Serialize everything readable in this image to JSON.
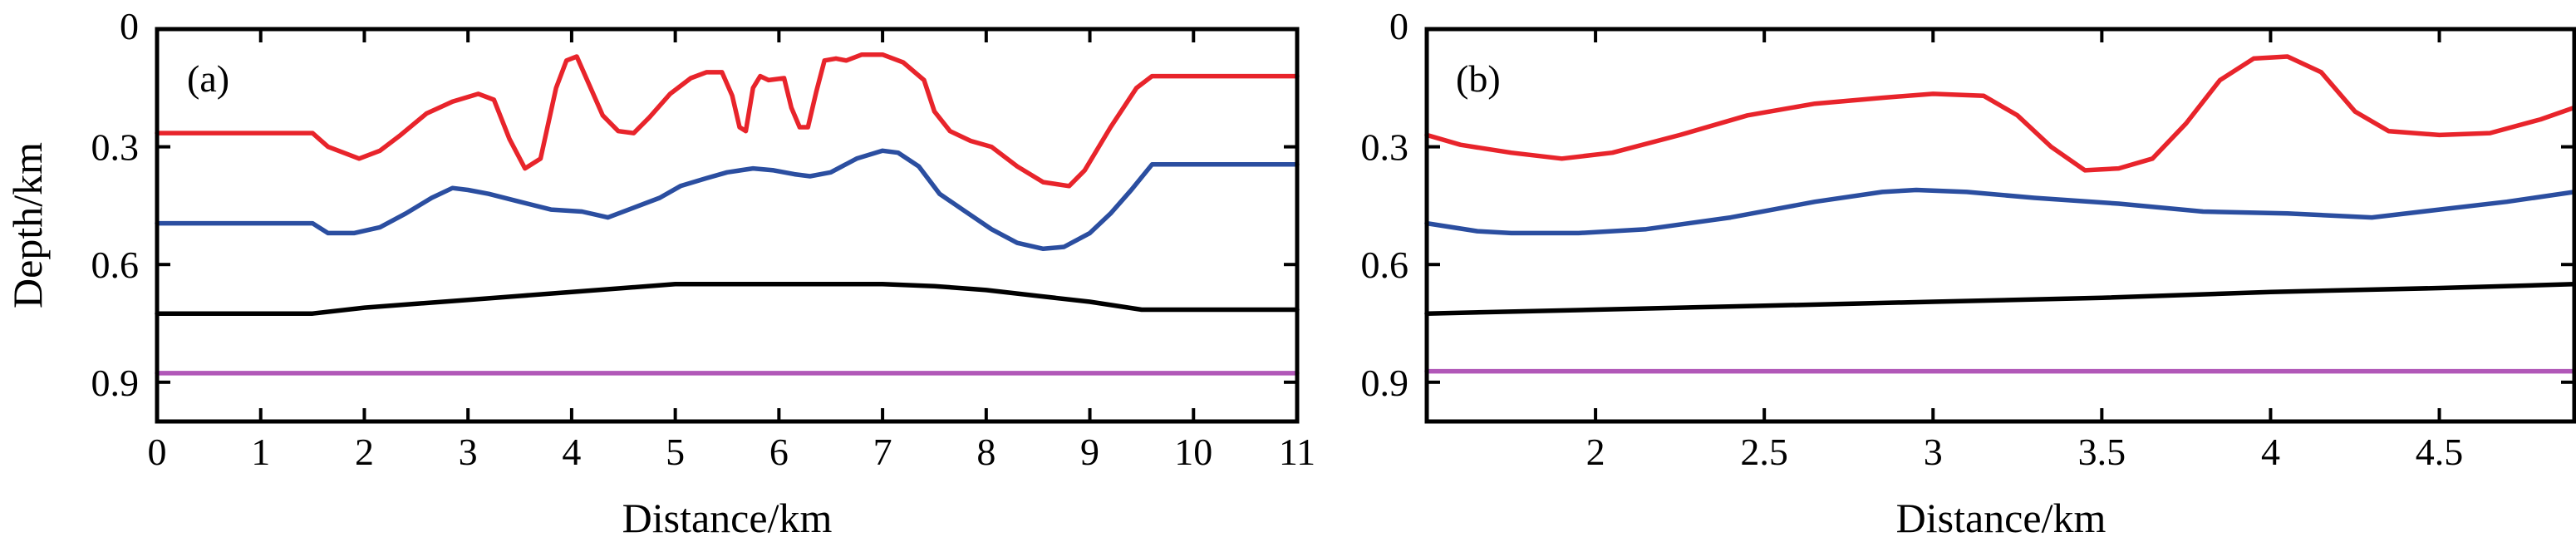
{
  "figure": {
    "background": "#ffffff"
  },
  "chart_data": [
    {
      "type": "line",
      "panel_label": "(a)",
      "xlabel": "Distance/km",
      "ylabel": "Depth/km",
      "xlim": [
        0,
        11
      ],
      "ylim": [
        0,
        1.0
      ],
      "y_inverted": true,
      "grid": false,
      "x_ticks": [
        0,
        1,
        2,
        3,
        4,
        5,
        6,
        7,
        8,
        9,
        10,
        11
      ],
      "x_tick_labels": [
        "0",
        "1",
        "2",
        "3",
        "4",
        "5",
        "6",
        "7",
        "8",
        "9",
        "10",
        "11"
      ],
      "y_ticks": [
        0,
        0.3,
        0.6,
        0.9
      ],
      "y_tick_labels": [
        "0",
        "0.3",
        "0.6",
        "0.9"
      ],
      "series": [
        {
          "color": "#e8242b",
          "x": [
            0,
            1.5,
            1.65,
            1.8,
            1.95,
            2.15,
            2.35,
            2.6,
            2.85,
            3.1,
            3.25,
            3.4,
            3.55,
            3.7,
            3.85,
            3.95,
            4.05,
            4.15,
            4.3,
            4.45,
            4.6,
            4.75,
            4.95,
            5.15,
            5.3,
            5.45,
            5.55,
            5.62,
            5.68,
            5.75,
            5.82,
            5.9,
            6.05,
            6.12,
            6.2,
            6.28,
            6.36,
            6.44,
            6.55,
            6.65,
            6.8,
            7.0,
            7.2,
            7.4,
            7.5,
            7.65,
            7.85,
            8.05,
            8.3,
            8.55,
            8.8,
            8.95,
            9.2,
            9.45,
            9.6,
            11
          ],
          "y": [
            0.265,
            0.265,
            0.3,
            0.315,
            0.33,
            0.31,
            0.27,
            0.215,
            0.185,
            0.165,
            0.18,
            0.28,
            0.355,
            0.33,
            0.15,
            0.08,
            0.07,
            0.13,
            0.22,
            0.26,
            0.265,
            0.225,
            0.165,
            0.125,
            0.11,
            0.11,
            0.17,
            0.25,
            0.26,
            0.15,
            0.12,
            0.13,
            0.125,
            0.2,
            0.25,
            0.25,
            0.16,
            0.08,
            0.075,
            0.08,
            0.065,
            0.065,
            0.085,
            0.13,
            0.21,
            0.26,
            0.285,
            0.3,
            0.35,
            0.39,
            0.4,
            0.36,
            0.25,
            0.15,
            0.12,
            0.12
          ]
        },
        {
          "color": "#2b4ea0",
          "x": [
            0,
            1.5,
            1.65,
            1.9,
            2.15,
            2.4,
            2.65,
            2.85,
            3.0,
            3.2,
            3.5,
            3.8,
            4.1,
            4.35,
            4.6,
            4.85,
            5.05,
            5.3,
            5.5,
            5.75,
            5.95,
            6.15,
            6.3,
            6.5,
            6.75,
            7.0,
            7.15,
            7.35,
            7.55,
            7.8,
            8.05,
            8.3,
            8.55,
            8.75,
            9.0,
            9.2,
            9.4,
            9.6,
            11
          ],
          "y": [
            0.495,
            0.495,
            0.52,
            0.52,
            0.505,
            0.47,
            0.43,
            0.405,
            0.41,
            0.42,
            0.44,
            0.46,
            0.465,
            0.48,
            0.455,
            0.43,
            0.4,
            0.38,
            0.365,
            0.355,
            0.36,
            0.37,
            0.375,
            0.365,
            0.33,
            0.31,
            0.315,
            0.35,
            0.42,
            0.465,
            0.51,
            0.545,
            0.56,
            0.555,
            0.52,
            0.47,
            0.41,
            0.345,
            0.345
          ]
        },
        {
          "color": "#000000",
          "x": [
            0,
            1.5,
            2.0,
            2.5,
            3.0,
            3.5,
            4.0,
            4.5,
            5.0,
            5.5,
            6.0,
            6.5,
            7.0,
            7.5,
            8.0,
            8.5,
            9.0,
            9.5,
            11
          ],
          "y": [
            0.725,
            0.725,
            0.71,
            0.7,
            0.69,
            0.68,
            0.67,
            0.66,
            0.65,
            0.65,
            0.65,
            0.65,
            0.65,
            0.655,
            0.665,
            0.68,
            0.695,
            0.715,
            0.715
          ]
        },
        {
          "color": "#b158b8",
          "x": [
            0,
            11
          ],
          "y": [
            0.877,
            0.877
          ]
        }
      ]
    },
    {
      "type": "line",
      "panel_label": "(b)",
      "xlabel": "Distance/km",
      "ylabel": "",
      "xlim": [
        1.5,
        4.9
      ],
      "ylim": [
        0,
        1.0
      ],
      "y_inverted": true,
      "grid": false,
      "x_ticks": [
        2,
        2.5,
        3,
        3.5,
        4,
        4.5
      ],
      "x_tick_labels": [
        "2",
        "2.5",
        "3",
        "3.5",
        "4",
        "4.5"
      ],
      "y_ticks": [
        0,
        0.3,
        0.6,
        0.9
      ],
      "y_tick_labels": [
        "0",
        "0.3",
        "0.6",
        "0.9"
      ],
      "series": [
        {
          "color": "#e8242b",
          "x": [
            1.5,
            1.6,
            1.75,
            1.9,
            2.05,
            2.25,
            2.45,
            2.65,
            2.85,
            3.0,
            3.15,
            3.25,
            3.35,
            3.45,
            3.55,
            3.65,
            3.75,
            3.85,
            3.95,
            4.05,
            4.15,
            4.25,
            4.35,
            4.5,
            4.65,
            4.8,
            4.9
          ],
          "y": [
            0.27,
            0.295,
            0.315,
            0.33,
            0.315,
            0.27,
            0.22,
            0.19,
            0.175,
            0.165,
            0.17,
            0.22,
            0.3,
            0.36,
            0.355,
            0.33,
            0.24,
            0.13,
            0.075,
            0.07,
            0.11,
            0.21,
            0.26,
            0.27,
            0.265,
            0.23,
            0.2
          ]
        },
        {
          "color": "#2b4ea0",
          "x": [
            1.5,
            1.65,
            1.75,
            1.95,
            2.15,
            2.4,
            2.65,
            2.85,
            2.95,
            3.1,
            3.3,
            3.55,
            3.8,
            4.05,
            4.3,
            4.5,
            4.7,
            4.9
          ],
          "y": [
            0.495,
            0.515,
            0.52,
            0.52,
            0.51,
            0.48,
            0.44,
            0.415,
            0.41,
            0.415,
            0.43,
            0.445,
            0.465,
            0.47,
            0.48,
            0.46,
            0.44,
            0.415
          ]
        },
        {
          "color": "#000000",
          "x": [
            1.5,
            2.0,
            2.5,
            3.0,
            3.5,
            4.0,
            4.5,
            4.9
          ],
          "y": [
            0.725,
            0.715,
            0.705,
            0.695,
            0.685,
            0.67,
            0.66,
            0.65
          ]
        },
        {
          "color": "#b158b8",
          "x": [
            1.5,
            4.9
          ],
          "y": [
            0.872,
            0.872
          ]
        }
      ]
    }
  ]
}
